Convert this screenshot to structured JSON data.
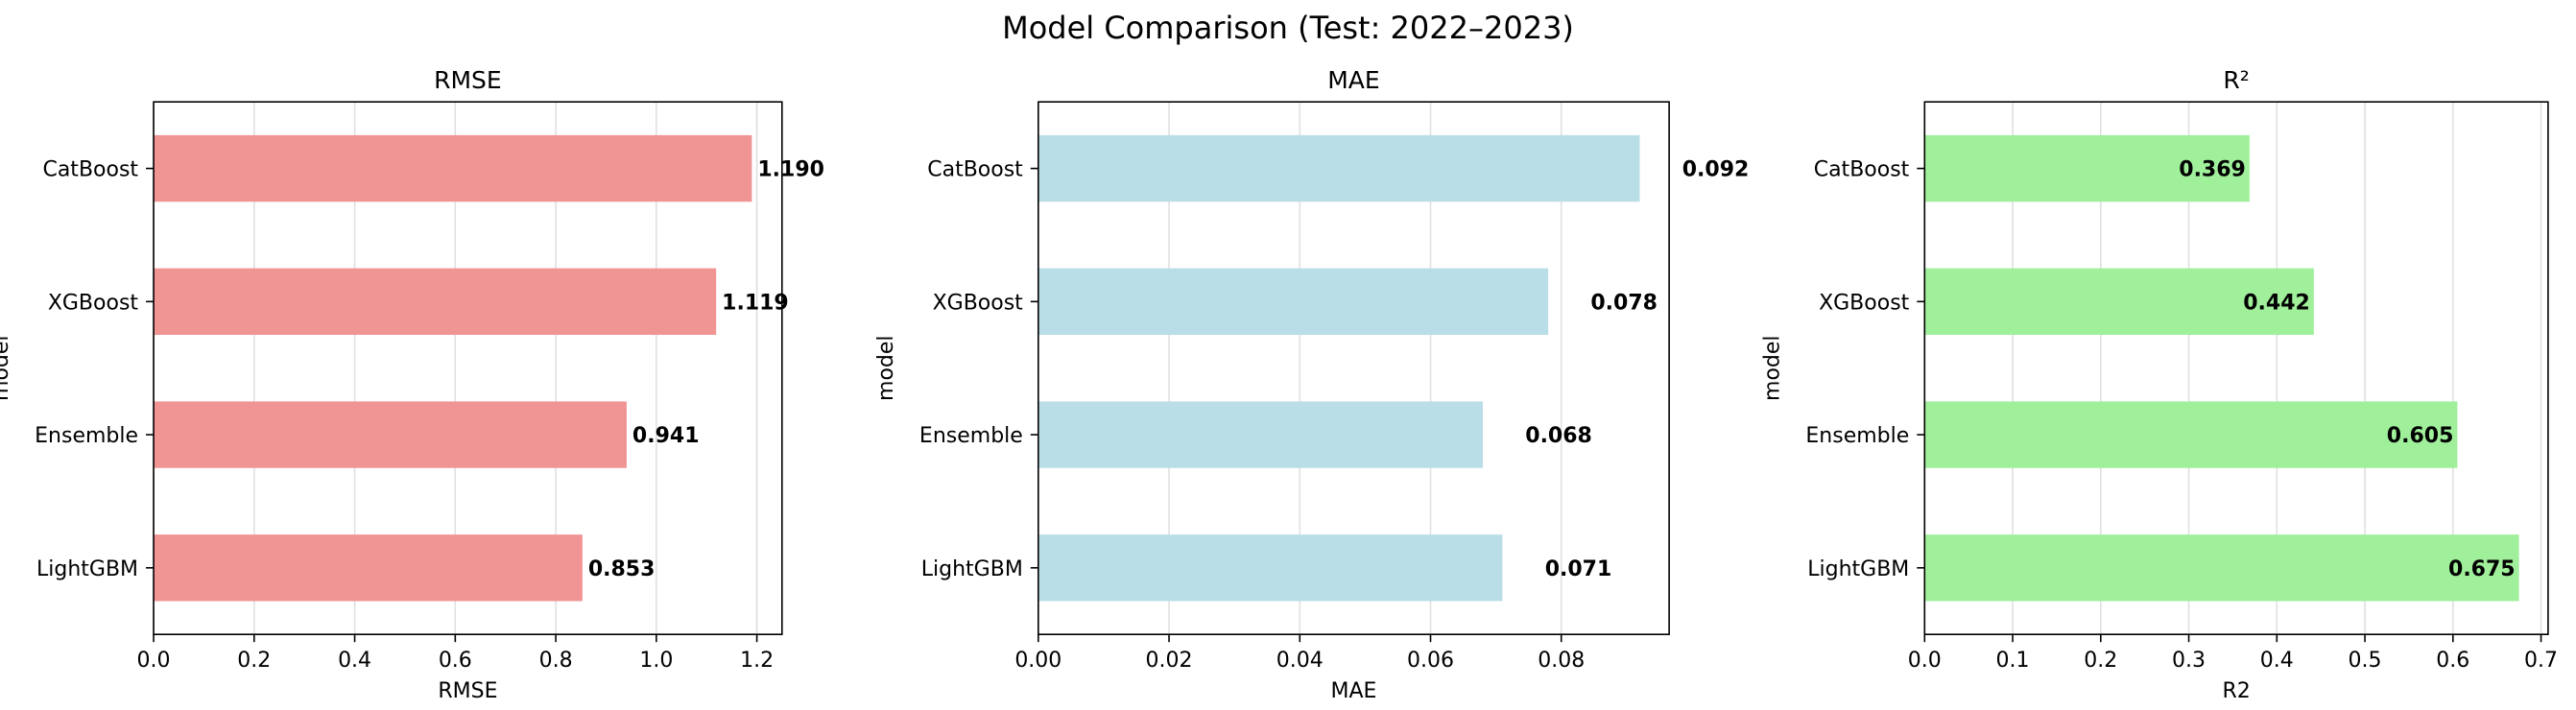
{
  "figure": {
    "suptitle": "Model Comparison (Test: 2022–2023)"
  },
  "chart_data": [
    {
      "type": "bar",
      "orientation": "horizontal",
      "title": "RMSE",
      "xlabel": "RMSE",
      "ylabel": "model",
      "categories": [
        "LightGBM",
        "Ensemble",
        "XGBoost",
        "CatBoost"
      ],
      "values": [
        0.853,
        0.941,
        1.119,
        1.19
      ],
      "value_labels": [
        "0.853",
        "0.941",
        "1.119",
        "1.190"
      ],
      "xlim": [
        0,
        1.25
      ],
      "xticks": [
        0,
        0.2,
        0.4,
        0.6,
        0.8,
        1.0,
        1.2
      ],
      "xtick_labels": [
        "0.0",
        "0.2",
        "0.4",
        "0.6",
        "0.8",
        "1.0",
        "1.2"
      ],
      "color": "#f09494",
      "grid": "x",
      "label_position": "outside"
    },
    {
      "type": "bar",
      "orientation": "horizontal",
      "title": "MAE",
      "xlabel": "MAE",
      "ylabel": "model",
      "categories": [
        "LightGBM",
        "Ensemble",
        "XGBoost",
        "CatBoost"
      ],
      "values": [
        0.071,
        0.068,
        0.078,
        0.092
      ],
      "value_labels": [
        "0.071",
        "0.068",
        "0.078",
        "0.092"
      ],
      "xlim": [
        0,
        0.0965
      ],
      "xticks": [
        0,
        0.02,
        0.04,
        0.06,
        0.08
      ],
      "xtick_labels": [
        "0.00",
        "0.02",
        "0.04",
        "0.06",
        "0.08"
      ],
      "color": "#badee8",
      "grid": "x",
      "label_position": "offset"
    },
    {
      "type": "bar",
      "orientation": "horizontal",
      "title": "R²",
      "xlabel": "R2",
      "ylabel": "model",
      "categories": [
        "LightGBM",
        "Ensemble",
        "XGBoost",
        "CatBoost"
      ],
      "values": [
        0.675,
        0.605,
        0.442,
        0.369
      ],
      "value_labels": [
        "0.675",
        "0.605",
        "0.442",
        "0.369"
      ],
      "xlim": [
        0,
        0.708
      ],
      "xticks": [
        0,
        0.1,
        0.2,
        0.3,
        0.4,
        0.5,
        0.6,
        0.7
      ],
      "xtick_labels": [
        "0.0",
        "0.1",
        "0.2",
        "0.3",
        "0.4",
        "0.5",
        "0.6",
        "0.7"
      ],
      "color": "#a0ef9b",
      "grid": "x",
      "label_position": "inside-end"
    }
  ]
}
